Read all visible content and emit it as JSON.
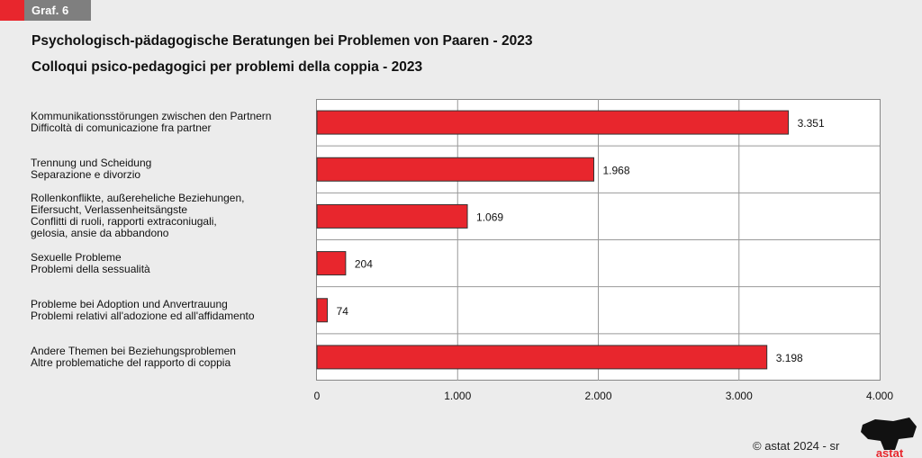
{
  "tag": "Graf. 6",
  "chart_data": {
    "type": "bar",
    "orientation": "horizontal",
    "title": "Psychologisch-pädagogische Beratungen bei Problemen von Paaren - 2023",
    "subtitle": "Colloqui psico-pedagogici per problemi della coppia - 2023",
    "categories": [
      "Kommunikationsstörungen zwischen den Partnern\nDifficoltà di comunicazione fra partner",
      "Trennung und Scheidung\nSeparazione e divorzio",
      "Rollenkonflikte, außereheliche Beziehungen,\nEifersucht, Verlassenheitsängste\nConflitti di ruoli, rapporti extraconiugali,\ngelosia, ansie da abbandono",
      "Sexuelle Probleme\nProblemi della sessualità",
      "Probleme bei Adoption und Anvertrauung\nProblemi relativi all'adozione ed all'affidamento",
      "Andere Themen bei Beziehungsproblemen\nAltre problematiche del rapporto di coppia"
    ],
    "values": [
      3351,
      1968,
      1069,
      204,
      74,
      3198
    ],
    "value_labels": [
      "3.351",
      "1.968",
      "1.069",
      "204",
      "74",
      "3.198"
    ],
    "xlim": [
      0,
      4000
    ],
    "ticks": [
      0,
      1000,
      2000,
      3000,
      4000
    ],
    "tick_labels": [
      "0",
      "1.000",
      "2.000",
      "3.000",
      "4.000"
    ],
    "grid": true,
    "bar_color": "#e8262d"
  },
  "footer": {
    "copyright": "© astat 2024 - sr",
    "logo_text": "astat"
  }
}
